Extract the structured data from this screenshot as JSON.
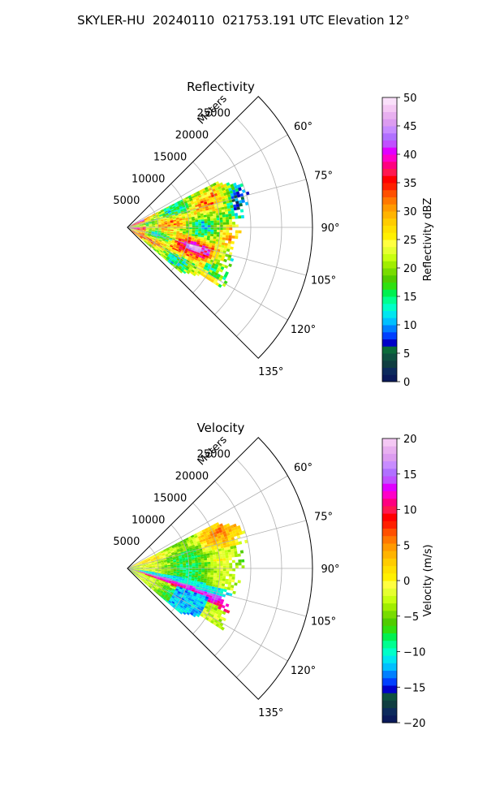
{
  "figure_title": "SKYLER-HU  20240110  021753.191 UTC Elevation 12°",
  "chart_data": [
    {
      "type": "heatmap",
      "projection": "polar-sector",
      "title": "Reflectivity",
      "range_label": "Meters",
      "range_max": 30000,
      "range_ticks": [
        5000,
        10000,
        15000,
        20000,
        25000
      ],
      "range_tick_labels": [
        "5000",
        "10000",
        "15000",
        "20000",
        "25000"
      ],
      "azimuth_range": [
        45,
        135
      ],
      "azimuth_ticks": [
        60,
        75,
        90,
        105,
        120,
        135
      ],
      "azimuth_tick_labels": [
        "60°",
        "75°",
        "90°",
        "105°",
        "120°",
        "135°"
      ],
      "grid": true,
      "colorbar": {
        "label": "Reflectivity dBZ",
        "min": 0,
        "max": 50,
        "ticks": [
          0,
          5,
          10,
          15,
          20,
          25,
          30,
          35,
          40,
          45,
          50
        ],
        "tick_labels": [
          "0",
          "5",
          "10",
          "15",
          "20",
          "25",
          "30",
          "35",
          "40",
          "45",
          "50"
        ],
        "colors": [
          "#0a1a5a",
          "#0c2a5c",
          "#0f3d40",
          "#0e5040",
          "#0b6a3a",
          "#0000c8",
          "#0040ff",
          "#0080ff",
          "#00c0ff",
          "#00e6f0",
          "#00ffc8",
          "#00ff90",
          "#00f050",
          "#30e010",
          "#50cc00",
          "#78dc00",
          "#a0ee00",
          "#c8ff10",
          "#e6ff30",
          "#ffff40",
          "#fff000",
          "#ffe000",
          "#ffcc00",
          "#ffb400",
          "#ff9a00",
          "#ff7800",
          "#ff5000",
          "#ff2000",
          "#ff0000",
          "#ff1850",
          "#ff0080",
          "#ff00c8",
          "#e000ff",
          "#c050ff",
          "#b070ff",
          "#c88cff",
          "#dc9cf0",
          "#e8b0f0",
          "#f4c8f4",
          "#fae0fa"
        ]
      },
      "data_extent_m": 22000,
      "data_azimuth_range": [
        63,
        130
      ]
    },
    {
      "type": "heatmap",
      "projection": "polar-sector",
      "title": "Velocity",
      "range_label": "Meters",
      "range_max": 30000,
      "range_ticks": [
        5000,
        10000,
        15000,
        20000,
        25000
      ],
      "range_tick_labels": [
        "5000",
        "10000",
        "15000",
        "20000",
        "25000"
      ],
      "azimuth_range": [
        45,
        135
      ],
      "azimuth_ticks": [
        60,
        75,
        90,
        105,
        120,
        135
      ],
      "azimuth_tick_labels": [
        "60°",
        "75°",
        "90°",
        "105°",
        "120°",
        "135°"
      ],
      "grid": true,
      "colorbar": {
        "label": "Velocity (m/s)",
        "min": -20,
        "max": 20,
        "ticks": [
          -20,
          -15,
          -10,
          -5,
          0,
          5,
          10,
          15,
          20
        ],
        "tick_labels": [
          "−20",
          "−15",
          "−10",
          "−5",
          "0",
          "5",
          "10",
          "15",
          "20"
        ],
        "colors": [
          "#0a1a5a",
          "#0c2a5c",
          "#0f3d40",
          "#0e5040",
          "#0000c8",
          "#0040ff",
          "#0080ff",
          "#00c0ff",
          "#00e6f0",
          "#00ffc8",
          "#00ff90",
          "#00f050",
          "#30e010",
          "#50cc00",
          "#78dc00",
          "#a0ee00",
          "#c8ff10",
          "#e6ff30",
          "#ffff40",
          "#fff000",
          "#ffe000",
          "#ffcc00",
          "#ffb400",
          "#ff9a00",
          "#ff7800",
          "#ff5000",
          "#ff2000",
          "#ff0000",
          "#ff1850",
          "#ff0080",
          "#ff00c8",
          "#e000ff",
          "#c050ff",
          "#b070ff",
          "#c88cff",
          "#dc9cf0",
          "#e8b0f0",
          "#f4c8f4"
        ]
      },
      "data_extent_m": 22000,
      "data_azimuth_range": [
        63,
        130
      ]
    }
  ]
}
